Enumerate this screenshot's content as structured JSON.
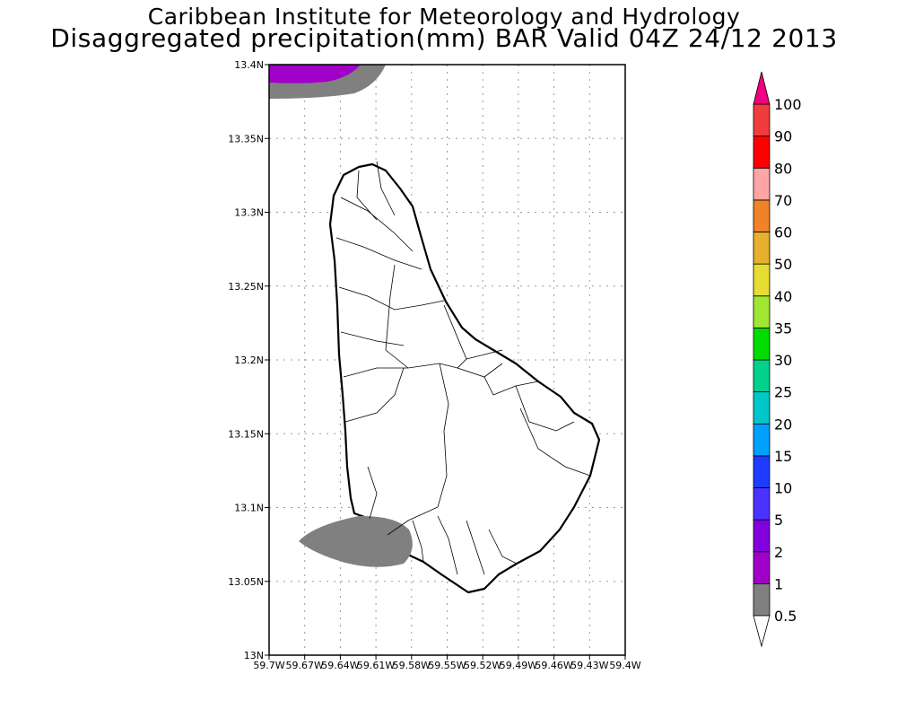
{
  "title": {
    "line1": "Caribbean Institute for Meteorology and Hydrology",
    "line2": "Disaggregated precipitation(mm) BAR Valid 04Z 24/12 2013"
  },
  "map": {
    "lon_range": [
      -59.7,
      -59.4
    ],
    "lat_range": [
      13.0,
      13.4
    ],
    "lat_labels": [
      "13N",
      "13.05N",
      "13.1N",
      "13.15N",
      "13.2N",
      "13.25N",
      "13.3N",
      "13.35N",
      "13.4N"
    ],
    "lon_labels": [
      "59.7W",
      "59.67W",
      "59.64W",
      "59.61W",
      "59.58W",
      "59.55W",
      "59.52W",
      "59.49W",
      "59.46W",
      "59.43W",
      "59.4W"
    ],
    "region": "Barbados"
  },
  "colorbar": {
    "labels": [
      "0.5",
      "1",
      "2",
      "5",
      "10",
      "15",
      "20",
      "25",
      "30",
      "35",
      "40",
      "50",
      "60",
      "70",
      "80",
      "90",
      "100"
    ],
    "colors": [
      "#808080",
      "#a000c8",
      "#8200dc",
      "#4a32ff",
      "#1e3cff",
      "#00a0ff",
      "#00c8c8",
      "#00d28c",
      "#00dc00",
      "#a0e632",
      "#e6dc32",
      "#e6af2d",
      "#f08228",
      "#ffa5a5",
      "#ff0000",
      "#f03c3c"
    ],
    "over_color": "#f00082",
    "under_color": "#ffffff"
  }
}
